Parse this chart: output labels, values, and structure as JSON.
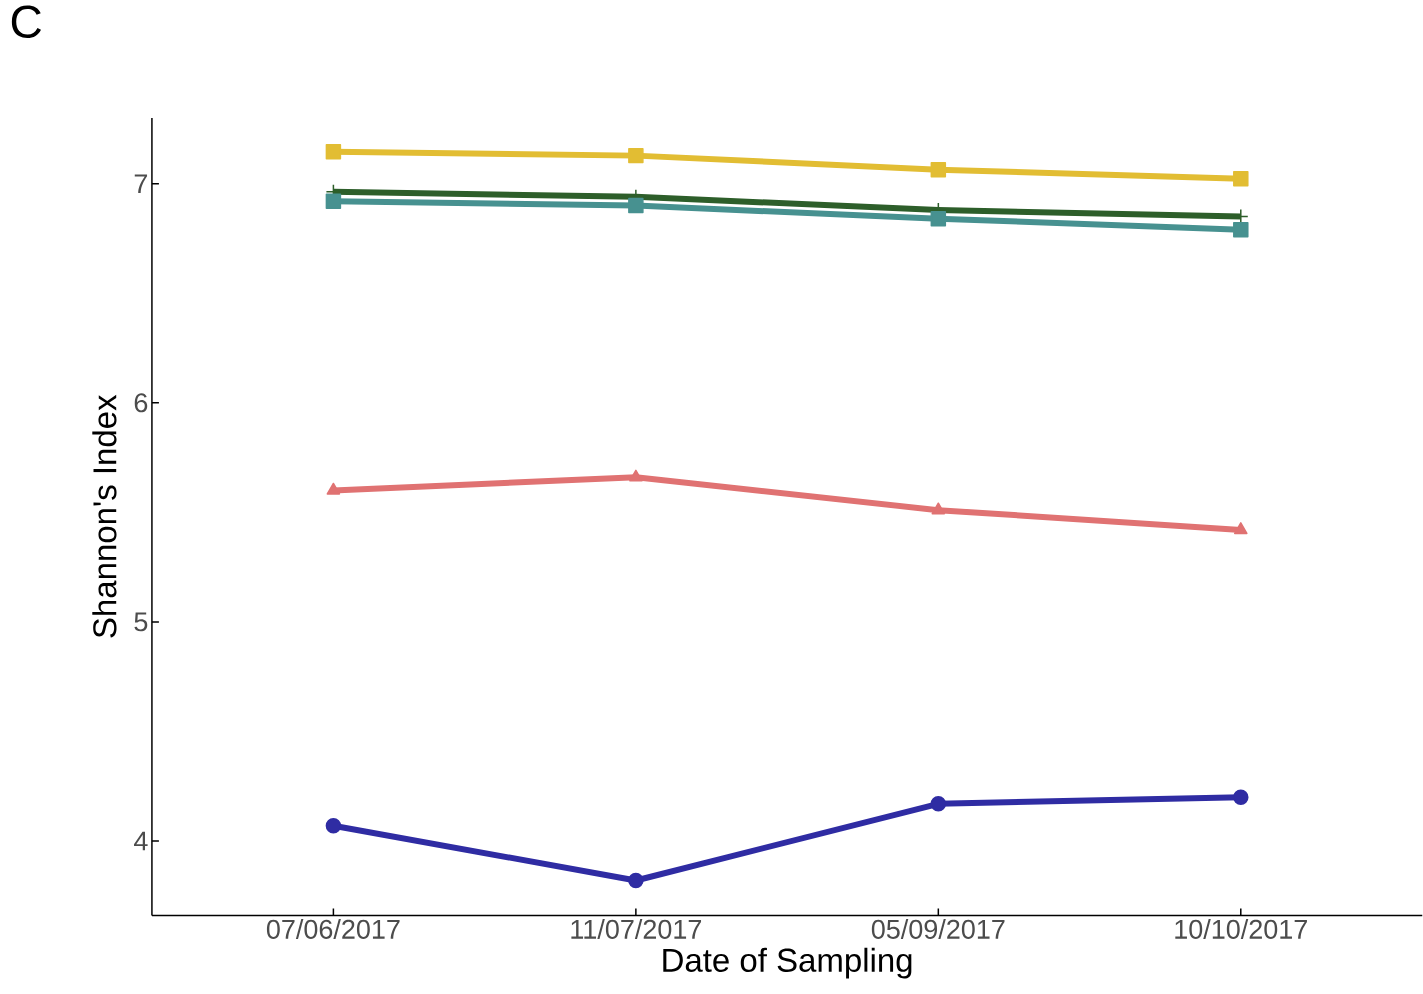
{
  "chart_data": {
    "type": "line",
    "xlabel": "Date of Sampling",
    "ylabel": "Shannon's Index",
    "annotations": [
      "C"
    ],
    "categories": [
      "07/06/2017",
      "11/07/2017",
      "05/09/2017",
      "10/10/2017"
    ],
    "ylim": [
      3.66,
      7.3
    ],
    "yticks": [
      4,
      5,
      6,
      7
    ],
    "grid": false,
    "series": [
      {
        "color": "#e2bd33",
        "marker": "square",
        "values": [
          7.146,
          7.128,
          7.064,
          7.023
        ]
      },
      {
        "color": "#2d5e2a",
        "marker": "cross",
        "values": [
          6.963,
          6.94,
          6.88,
          6.85
        ]
      },
      {
        "color": "#479190",
        "marker": "square",
        "values": [
          6.92,
          6.9,
          6.84,
          6.79
        ]
      },
      {
        "color": "#e07272",
        "marker": "triangle",
        "values": [
          5.6,
          5.66,
          5.51,
          5.42
        ]
      },
      {
        "color": "#2f2ca3",
        "marker": "circle",
        "values": [
          4.07,
          3.82,
          4.17,
          4.2
        ]
      }
    ]
  }
}
